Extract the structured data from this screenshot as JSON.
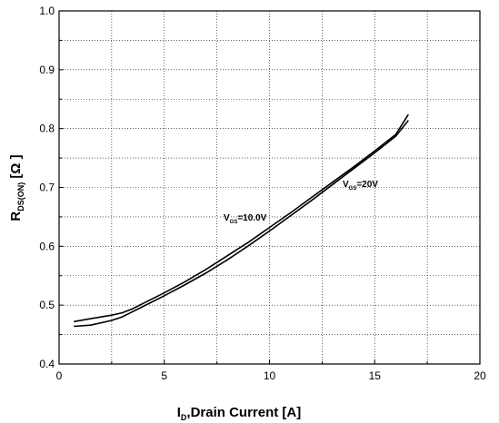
{
  "chart_data": {
    "type": "line",
    "xlabel": "I_D, Drain Current [A]",
    "xlabel_parts": {
      "main": "I",
      "sub": "D",
      "rest": ",Drain Current [A]"
    },
    "ylabel": "R_DS(ON) [Ω ]",
    "ylabel_parts": {
      "main": "R",
      "sub": "DS(ON)",
      "rest": " [Ω ]"
    },
    "xlim": [
      0,
      20
    ],
    "ylim": [
      0.4,
      1.0
    ],
    "x_ticks": [
      0,
      5,
      10,
      15,
      20
    ],
    "y_ticks": [
      0.4,
      0.5,
      0.6,
      0.7,
      0.8,
      0.9,
      1.0
    ],
    "x_tick_labels": [
      "0",
      "5",
      "10",
      "15",
      "20"
    ],
    "y_tick_labels": [
      "0.4",
      "0.5",
      "0.6",
      "0.7",
      "0.8",
      "0.9",
      "1.0"
    ],
    "grid": true,
    "series": [
      {
        "name": "VGS=10.0V",
        "x": [
          0.7,
          1.5,
          2.5,
          3.0,
          3.5,
          4.0,
          5.0,
          6.0,
          7.0,
          8.0,
          9.0,
          10.0,
          11.0,
          12.0,
          13.0,
          14.0,
          15.0,
          16.0,
          16.6
        ],
        "y": [
          0.472,
          0.477,
          0.483,
          0.487,
          0.494,
          0.503,
          0.521,
          0.54,
          0.561,
          0.584,
          0.607,
          0.632,
          0.657,
          0.683,
          0.709,
          0.735,
          0.762,
          0.79,
          0.824
        ]
      },
      {
        "name": "VGS=20V",
        "x": [
          0.7,
          1.5,
          2.5,
          3.0,
          3.5,
          4.0,
          5.0,
          6.0,
          7.0,
          8.0,
          9.0,
          10.0,
          11.0,
          12.0,
          13.0,
          14.0,
          15.0,
          16.0,
          16.6
        ],
        "y": [
          0.464,
          0.466,
          0.474,
          0.48,
          0.489,
          0.498,
          0.516,
          0.535,
          0.555,
          0.577,
          0.601,
          0.626,
          0.652,
          0.678,
          0.705,
          0.732,
          0.759,
          0.787,
          0.814
        ]
      }
    ],
    "annotations": [
      {
        "main": "V",
        "sub": "GS",
        "rest": "=10.0V"
      },
      {
        "main": "V",
        "sub": "GS",
        "rest": "=20V"
      }
    ]
  }
}
